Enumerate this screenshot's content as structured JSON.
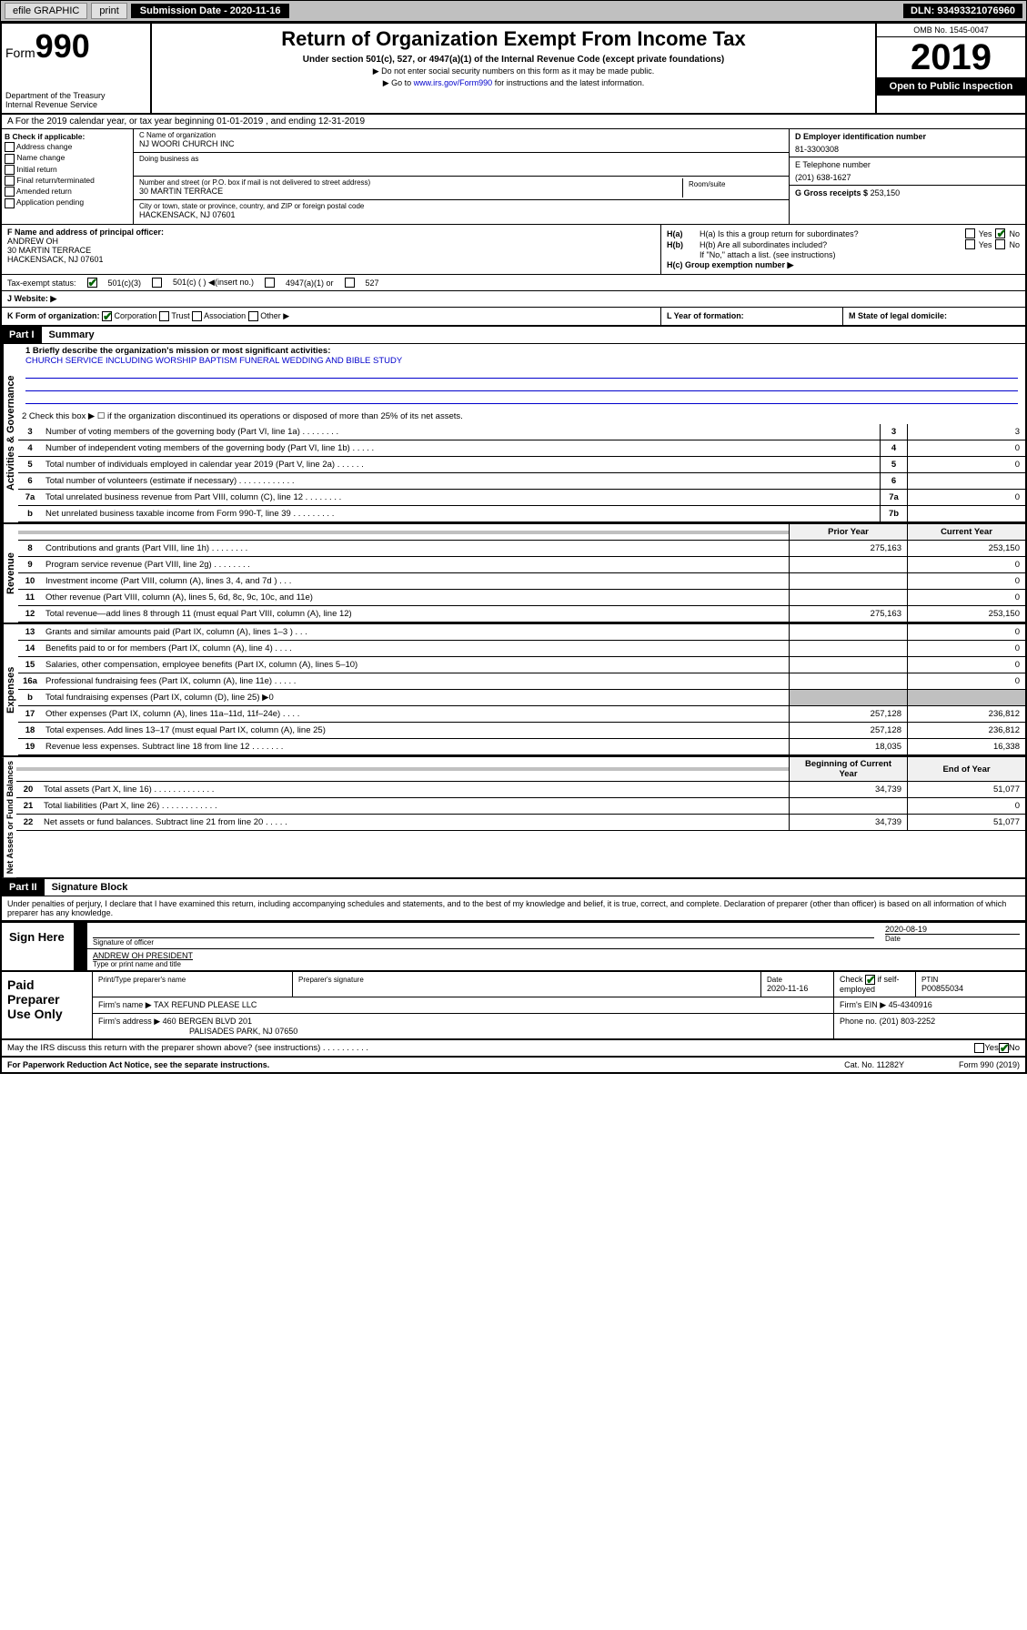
{
  "topbar": {
    "efile": "efile GRAPHIC",
    "print": "print",
    "subdate_lbl": "Submission Date - 2020-11-16",
    "dln": "DLN: 93493321076960"
  },
  "header": {
    "form": "Form",
    "num": "990",
    "dept": "Department of the Treasury\nInternal Revenue Service",
    "title": "Return of Organization Exempt From Income Tax",
    "sub": "Under section 501(c), 527, or 4947(a)(1) of the Internal Revenue Code (except private foundations)",
    "note1": "▶ Do not enter social security numbers on this form as it may be made public.",
    "note2_a": "▶ Go to ",
    "note2_link": "www.irs.gov/Form990",
    "note2_b": " for instructions and the latest information.",
    "omb": "OMB No. 1545-0047",
    "year": "2019",
    "open": "Open to Public Inspection"
  },
  "rowA": "A For the 2019 calendar year, or tax year beginning 01-01-2019    , and ending 12-31-2019",
  "boxB": {
    "lbl": "B Check if applicable:",
    "opts": [
      "Address change",
      "Name change",
      "Initial return",
      "Final return/terminated",
      "Amended return",
      "Application pending"
    ]
  },
  "boxC": {
    "name_lbl": "C Name of organization",
    "name": "NJ WOORI CHURCH INC",
    "dba_lbl": "Doing business as",
    "addr_lbl": "Number and street (or P.O. box if mail is not delivered to street address)",
    "addr": "30 MARTIN TERRACE",
    "room_lbl": "Room/suite",
    "city_lbl": "City or town, state or province, country, and ZIP or foreign postal code",
    "city": "HACKENSACK, NJ  07601"
  },
  "boxD": {
    "lbl": "D Employer identification number",
    "val": "81-3300308"
  },
  "boxE": {
    "lbl": "E Telephone number",
    "val": "(201) 638-1627"
  },
  "boxG": {
    "lbl": "G Gross receipts $",
    "val": "253,150"
  },
  "boxF": {
    "lbl": "F  Name and address of principal officer:",
    "name": "ANDREW OH",
    "addr1": "30 MARTIN TERRACE",
    "addr2": "HACKENSACK, NJ  07601"
  },
  "boxH": {
    "a": "H(a)  Is this a group return for subordinates?",
    "a_yes": "Yes",
    "a_no": "No",
    "b": "H(b)  Are all subordinates included?",
    "b_yes": "Yes",
    "b_no": "No",
    "b_note": "If \"No,\" attach a list. (see instructions)",
    "c": "H(c)  Group exemption number ▶"
  },
  "rowI": {
    "lbl": "Tax-exempt status:",
    "o1": "501(c)(3)",
    "o2": "501(c) (  ) ◀(insert no.)",
    "o3": "4947(a)(1) or",
    "o4": "527"
  },
  "rowJ": "J   Website: ▶",
  "rowK": {
    "lbl": "K Form of organization:",
    "o1": "Corporation",
    "o2": "Trust",
    "o3": "Association",
    "o4": "Other ▶"
  },
  "rowL": "L Year of formation:",
  "rowM": "M State of legal domicile:",
  "part1": {
    "hdr": "Part I",
    "title": "Summary"
  },
  "gov": {
    "side": "Activities & Governance",
    "l1": "1  Briefly describe the organization's mission or most significant activities:",
    "l1v": "CHURCH SERVICE INCLUDING WORSHIP BAPTISM FUNERAL WEDDING AND BIBLE STUDY",
    "l2": "2   Check this box ▶ ☐  if the organization discontinued its operations or disposed of more than 25% of its net assets.",
    "lines": [
      {
        "n": "3",
        "t": "Number of voting members of the governing body (Part VI, line 1a)  .   .   .   .   .   .   .   .",
        "nc": "3",
        "v": "3"
      },
      {
        "n": "4",
        "t": "Number of independent voting members of the governing body (Part VI, line 1b)   .   .   .   .   .",
        "nc": "4",
        "v": "0"
      },
      {
        "n": "5",
        "t": "Total number of individuals employed in calendar year 2019 (Part V, line 2a)   .   .   .   .   .   .",
        "nc": "5",
        "v": "0"
      },
      {
        "n": "6",
        "t": "Total number of volunteers (estimate if necessary)   .   .   .   .   .   .   .   .   .   .   .   .",
        "nc": "6",
        "v": ""
      },
      {
        "n": "7a",
        "t": "Total unrelated business revenue from Part VIII, column (C), line 12   .   .   .   .   .   .   .   .",
        "nc": "7a",
        "v": "0"
      },
      {
        "n": "b",
        "t": "Net unrelated business taxable income from Form 990-T, line 39   .   .   .   .   .   .   .   .   .",
        "nc": "7b",
        "v": ""
      }
    ]
  },
  "rev": {
    "side": "Revenue",
    "hdr_py": "Prior Year",
    "hdr_cy": "Current Year",
    "lines": [
      {
        "n": "8",
        "t": "Contributions and grants (Part VIII, line 1h)   .   .   .   .   .   .   .   .",
        "py": "275,163",
        "cy": "253,150"
      },
      {
        "n": "9",
        "t": "Program service revenue (Part VIII, line 2g)   .   .   .   .   .   .   .   .",
        "py": "",
        "cy": "0"
      },
      {
        "n": "10",
        "t": "Investment income (Part VIII, column (A), lines 3, 4, and 7d )   .   .   .",
        "py": "",
        "cy": "0"
      },
      {
        "n": "11",
        "t": "Other revenue (Part VIII, column (A), lines 5, 6d, 8c, 9c, 10c, and 11e)",
        "py": "",
        "cy": "0"
      },
      {
        "n": "12",
        "t": "Total revenue—add lines 8 through 11 (must equal Part VIII, column (A), line 12)",
        "py": "275,163",
        "cy": "253,150"
      }
    ]
  },
  "exp": {
    "side": "Expenses",
    "lines": [
      {
        "n": "13",
        "t": "Grants and similar amounts paid (Part IX, column (A), lines 1–3 )   .   .   .",
        "py": "",
        "cy": "0"
      },
      {
        "n": "14",
        "t": "Benefits paid to or for members (Part IX, column (A), line 4)   .   .   .   .",
        "py": "",
        "cy": "0"
      },
      {
        "n": "15",
        "t": "Salaries, other compensation, employee benefits (Part IX, column (A), lines 5–10)",
        "py": "",
        "cy": "0"
      },
      {
        "n": "16a",
        "t": "Professional fundraising fees (Part IX, column (A), line 11e)   .   .   .   .   .",
        "py": "",
        "cy": "0"
      },
      {
        "n": "b",
        "t": "Total fundraising expenses (Part IX, column (D), line 25) ▶0",
        "py": "grey",
        "cy": "grey"
      },
      {
        "n": "17",
        "t": "Other expenses (Part IX, column (A), lines 11a–11d, 11f–24e)   .   .   .   .",
        "py": "257,128",
        "cy": "236,812"
      },
      {
        "n": "18",
        "t": "Total expenses. Add lines 13–17 (must equal Part IX, column (A), line 25)",
        "py": "257,128",
        "cy": "236,812"
      },
      {
        "n": "19",
        "t": "Revenue less expenses. Subtract line 18 from line 12   .   .   .   .   .   .   .",
        "py": "18,035",
        "cy": "16,338"
      }
    ]
  },
  "net": {
    "side": "Net Assets or Fund Balances",
    "hdr_b": "Beginning of Current Year",
    "hdr_e": "End of Year",
    "lines": [
      {
        "n": "20",
        "t": "Total assets (Part X, line 16)   .   .   .   .   .   .   .   .   .   .   .   .   .",
        "b": "34,739",
        "e": "51,077"
      },
      {
        "n": "21",
        "t": "Total liabilities (Part X, line 26)   .   .   .   .   .   .   .   .   .   .   .   .",
        "b": "",
        "e": "0"
      },
      {
        "n": "22",
        "t": "Net assets or fund balances. Subtract line 21 from line 20   .   .   .   .   .",
        "b": "34,739",
        "e": "51,077"
      }
    ]
  },
  "part2": {
    "hdr": "Part II",
    "title": "Signature Block"
  },
  "penalty": "Under penalties of perjury, I declare that I have examined this return, including accompanying schedules and statements, and to the best of my knowledge and belief, it is true, correct, and complete. Declaration of preparer (other than officer) is based on all information of which preparer has any knowledge.",
  "sign": {
    "lbl": "Sign Here",
    "sig_lbl": "Signature of officer",
    "date": "2020-08-19",
    "date_lbl": "Date",
    "name": "ANDREW OH PRESIDENT",
    "name_lbl": "Type or print name and title"
  },
  "paid": {
    "lbl": "Paid Preparer Use Only",
    "h1": "Print/Type preparer's name",
    "h2": "Preparer's signature",
    "h3": "Date",
    "h3v": "2020-11-16",
    "h4a": "Check",
    "h4b": "if self-employed",
    "h5": "PTIN",
    "h5v": "P00855034",
    "firm_lbl": "Firm's name    ▶",
    "firm": "TAX REFUND PLEASE LLC",
    "ein_lbl": "Firm's EIN ▶",
    "ein": "45-4340916",
    "addr_lbl": "Firm's address ▶",
    "addr1": "460 BERGEN BLVD 201",
    "addr2": "PALISADES PARK, NJ  07650",
    "phone_lbl": "Phone no.",
    "phone": "(201) 803-2252"
  },
  "discuss": "May the IRS discuss this return with the preparer shown above? (see instructions)   .   .   .   .   .   .   .   .   .   .",
  "footer": {
    "l": "For Paperwork Reduction Act Notice, see the separate instructions.",
    "c": "Cat. No. 11282Y",
    "r": "Form 990 (2019)"
  }
}
